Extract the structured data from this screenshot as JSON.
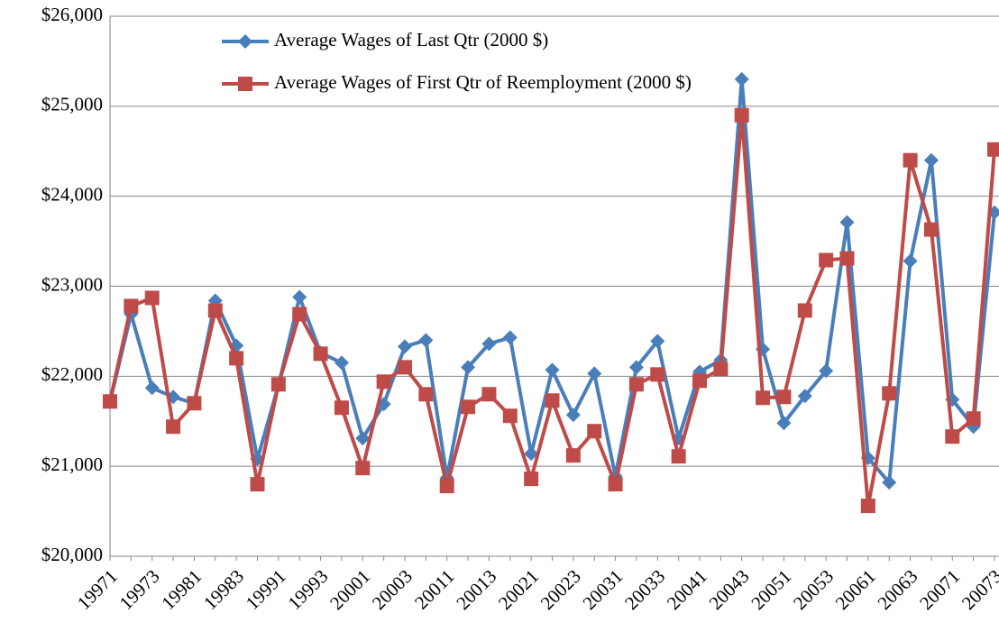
{
  "chart_data": {
    "type": "line",
    "categories": [
      "19971",
      null,
      "19973",
      null,
      "19981",
      null,
      "19983",
      null,
      "19991",
      null,
      "19993",
      null,
      "20001",
      null,
      "20003",
      null,
      "20011",
      null,
      "20013",
      null,
      "20021",
      null,
      "20023",
      null,
      "20031",
      null,
      "20033",
      null,
      "20041",
      null,
      "20043",
      null,
      "20051",
      null,
      "20053",
      null,
      "20061",
      null,
      "20063",
      null,
      "20071",
      null,
      "20073"
    ],
    "series": [
      {
        "name": "Average Wages of Last Qtr (2000 $)",
        "color": "#4a7ebb",
        "marker": "diamond",
        "values": [
          21720,
          22690,
          21870,
          21770,
          21700,
          22840,
          22340,
          21080,
          21900,
          22880,
          22260,
          22150,
          21310,
          21690,
          22330,
          22400,
          20870,
          22100,
          22360,
          22430,
          21140,
          22070,
          21570,
          22030,
          20890,
          22100,
          22390,
          21310,
          22050,
          22180,
          25300,
          22300,
          21480,
          21780,
          22060,
          23710,
          21090,
          20820,
          23280,
          24400,
          21740,
          21440,
          23820
        ]
      },
      {
        "name": "Average Wages of First Qtr of Reemployment (2000 $)",
        "color": "#be4b48",
        "marker": "square",
        "values": [
          21720,
          22780,
          22870,
          21440,
          21700,
          22730,
          22200,
          20800,
          21910,
          22690,
          22250,
          21650,
          20980,
          21940,
          22100,
          21800,
          20780,
          21660,
          21800,
          21560,
          20860,
          21730,
          21120,
          21390,
          20800,
          21910,
          22020,
          21110,
          21950,
          22080,
          24900,
          21760,
          21770,
          22730,
          23290,
          23310,
          20560,
          21810,
          24400,
          23630,
          21330,
          21530,
          24520
        ]
      }
    ],
    "ylim": [
      20000,
      26000
    ],
    "yticks": [
      {
        "value": 20000,
        "label": "$20,000"
      },
      {
        "value": 21000,
        "label": "$21,000"
      },
      {
        "value": 22000,
        "label": "$22,000"
      },
      {
        "value": 23000,
        "label": "$23,000"
      },
      {
        "value": 24000,
        "label": "$24,000"
      },
      {
        "value": 25000,
        "label": "$25,000"
      },
      {
        "value": 26000,
        "label": "$26,000"
      }
    ],
    "grid": true
  }
}
